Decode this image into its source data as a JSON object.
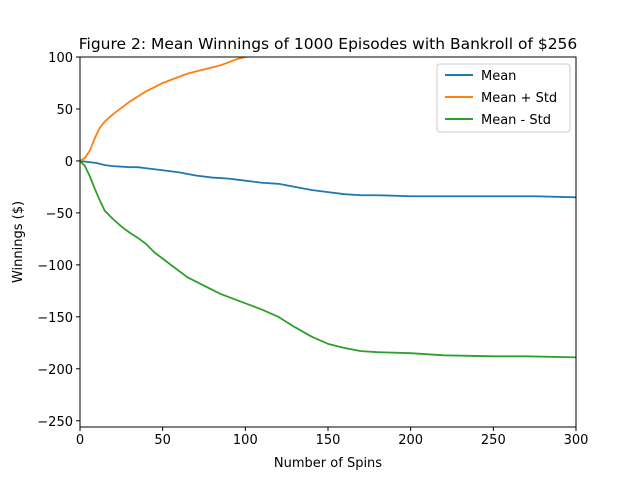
{
  "chart_data": {
    "type": "line",
    "title": "Figure 2: Mean Winnings of 1000 Episodes with Bankroll of $256",
    "xlabel": "Number of Spins",
    "ylabel": "Winnings ($)",
    "xlim": [
      0,
      300
    ],
    "ylim": [
      -256,
      100
    ],
    "xticks": [
      0,
      50,
      100,
      150,
      200,
      250,
      300
    ],
    "yticks": [
      100,
      50,
      0,
      -50,
      -100,
      -150,
      -200,
      -250
    ],
    "xtick_labels": [
      "0",
      "50",
      "100",
      "150",
      "200",
      "250",
      "300"
    ],
    "ytick_labels": [
      "100",
      "50",
      "0",
      "−50",
      "−100",
      "−150",
      "−200",
      "−250"
    ],
    "grid": false,
    "legend_position": "upper right",
    "series": [
      {
        "name": "Mean",
        "color": "#1f77b4",
        "x": [
          0,
          5,
          10,
          15,
          20,
          30,
          35,
          40,
          50,
          60,
          70,
          80,
          90,
          100,
          110,
          120,
          130,
          140,
          150,
          160,
          170,
          180,
          200,
          225,
          250,
          275,
          300
        ],
        "y": [
          0,
          -1,
          -2,
          -4,
          -5,
          -6,
          -6,
          -7,
          -9,
          -11,
          -14,
          -16,
          -17,
          -19,
          -21,
          -22,
          -25,
          -28,
          -30,
          -32,
          -33,
          -33,
          -34,
          -34,
          -34,
          -34,
          -35
        ]
      },
      {
        "name": "Mean + Std",
        "color": "#ff7f0e",
        "x": [
          0,
          3,
          6,
          9,
          12,
          15,
          20,
          25,
          30,
          35,
          40,
          45,
          50,
          55,
          60,
          65,
          70,
          75,
          80,
          85,
          90,
          95,
          100,
          102
        ],
        "y": [
          0,
          3,
          10,
          22,
          32,
          38,
          45,
          51,
          57,
          62,
          67,
          71,
          75,
          78,
          81,
          84,
          86,
          88,
          90,
          92,
          95,
          98,
          100,
          101
        ]
      },
      {
        "name": "Mean - Std",
        "color": "#2ca02c",
        "x": [
          0,
          3,
          6,
          9,
          12,
          15,
          20,
          25,
          30,
          35,
          40,
          45,
          50,
          55,
          60,
          65,
          70,
          75,
          80,
          85,
          90,
          95,
          100,
          110,
          120,
          130,
          140,
          150,
          160,
          170,
          180,
          200,
          220,
          250,
          270,
          300
        ],
        "y": [
          0,
          -5,
          -15,
          -27,
          -38,
          -48,
          -56,
          -63,
          -69,
          -74,
          -80,
          -88,
          -94,
          -100,
          -106,
          -112,
          -116,
          -120,
          -124,
          -128,
          -131,
          -134,
          -137,
          -143,
          -150,
          -160,
          -169,
          -176,
          -180,
          -183,
          -184,
          -185,
          -187,
          -188,
          -188,
          -189
        ]
      }
    ]
  }
}
